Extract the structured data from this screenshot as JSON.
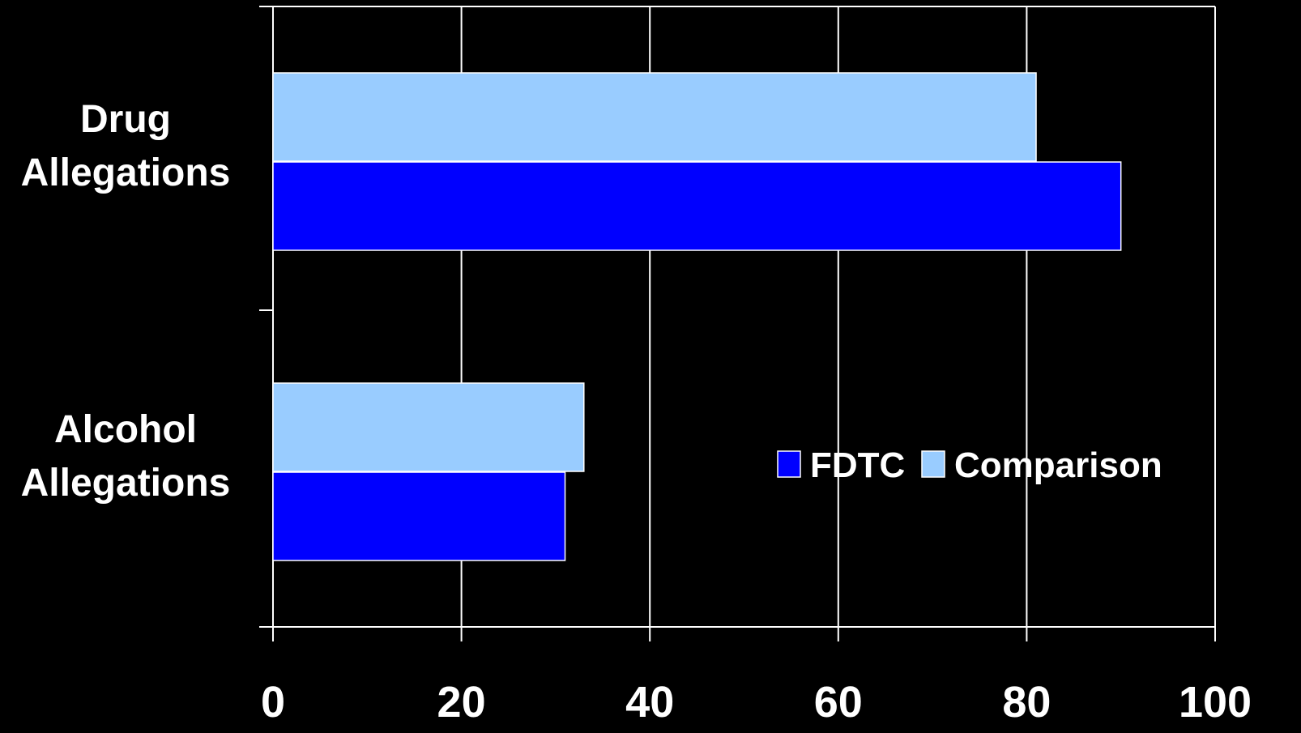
{
  "chart_data": {
    "type": "bar",
    "orientation": "horizontal",
    "categories": [
      [
        "Drug",
        "Allegations"
      ],
      [
        "Alcohol",
        "Allegations"
      ]
    ],
    "series": [
      {
        "name": "FDTC",
        "values": [
          90,
          31
        ],
        "color": "#0000ff"
      },
      {
        "name": "Comparison",
        "values": [
          81,
          33
        ],
        "color": "#99ccff"
      }
    ],
    "xlim": [
      0,
      100
    ],
    "xticks": [
      "0",
      "20",
      "40",
      "60",
      "80",
      "100"
    ],
    "grid": true,
    "legend_position": "right-center",
    "background": "#000000",
    "axis_color": "#ffffff"
  }
}
